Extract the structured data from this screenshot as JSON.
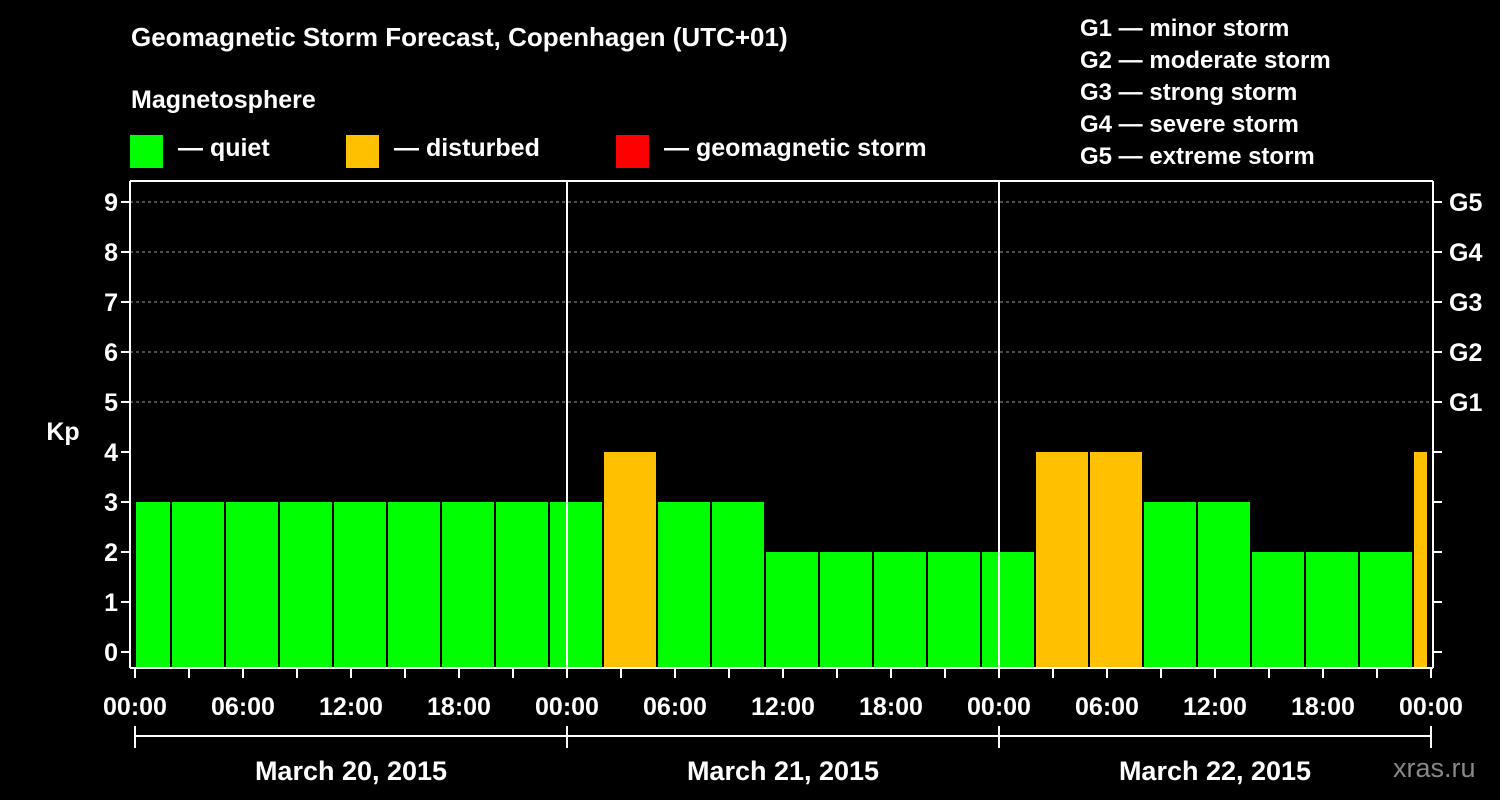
{
  "colors": {
    "background": "#000000",
    "quiet": "#00ff00",
    "disturbed": "#ffc000",
    "storm": "#ff0000",
    "axis": "#ffffff",
    "grid": "#9a9a9a",
    "watermark": "#888888"
  },
  "header": {
    "title": "Geomagnetic Storm Forecast, Copenhagen (UTC+01)",
    "magnetosphere_label": "Magnetosphere"
  },
  "legend": {
    "quiet": "— quiet",
    "disturbed": "— disturbed",
    "storm": "— geomagnetic storm"
  },
  "storm_scale": [
    "G1 — minor storm",
    "G2 — moderate storm",
    "G3 — strong storm",
    "G4 — severe storm",
    "G5 — extreme storm"
  ],
  "watermark": "xras.ru",
  "chart_data": {
    "type": "bar",
    "ylabel": "Kp",
    "ylim": [
      0,
      9
    ],
    "y_ticks": [
      0,
      1,
      2,
      3,
      4,
      5,
      6,
      7,
      8,
      9
    ],
    "right_axis_ticks": [
      {
        "kp": 5,
        "label": "G1"
      },
      {
        "kp": 6,
        "label": "G2"
      },
      {
        "kp": 7,
        "label": "G3"
      },
      {
        "kp": 8,
        "label": "G4"
      },
      {
        "kp": 9,
        "label": "G5"
      }
    ],
    "grid": "horizontal dashed at Kp 5-9",
    "x_tick_labels": [
      "00:00",
      "06:00",
      "12:00",
      "18:00",
      "00:00",
      "06:00",
      "12:00",
      "18:00",
      "00:00",
      "06:00",
      "12:00",
      "18:00",
      "00:00"
    ],
    "days": [
      "March 20, 2015",
      "March 21, 2015",
      "March 22, 2015"
    ],
    "interval_hours": 3,
    "start_offset_hours": -1,
    "values": [
      3,
      3,
      3,
      3,
      3,
      3,
      3,
      3,
      3,
      4,
      3,
      3,
      2,
      2,
      2,
      2,
      2,
      4,
      4,
      3,
      3,
      2,
      2,
      2,
      4
    ],
    "status": [
      "quiet",
      "quiet",
      "quiet",
      "quiet",
      "quiet",
      "quiet",
      "quiet",
      "quiet",
      "quiet",
      "disturbed",
      "quiet",
      "quiet",
      "quiet",
      "quiet",
      "quiet",
      "quiet",
      "quiet",
      "disturbed",
      "disturbed",
      "quiet",
      "quiet",
      "quiet",
      "quiet",
      "quiet",
      "disturbed"
    ]
  }
}
